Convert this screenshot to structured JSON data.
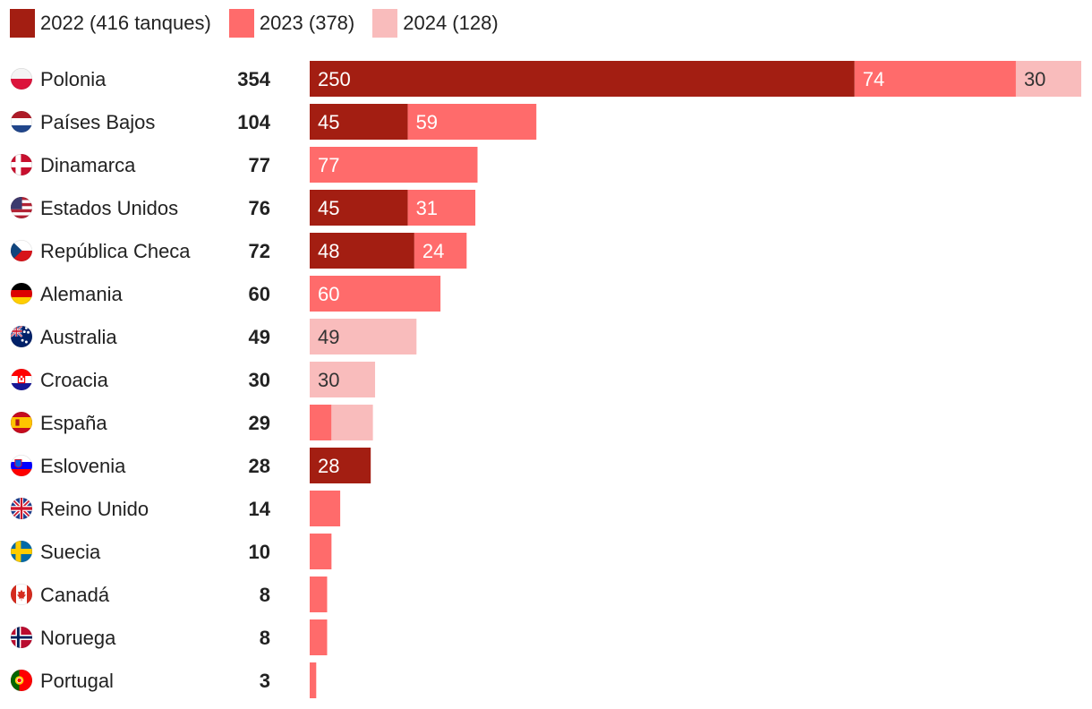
{
  "chart_data": {
    "type": "bar",
    "orientation": "horizontal",
    "stacked": true,
    "legend_position": "top-left",
    "colors": {
      "2022": "#a31e12",
      "2023": "#ff6b6b",
      "2024": "#f9bcbc"
    },
    "series": [
      {
        "key": "2022",
        "name": "2022 (416 tanques)",
        "values": [
          250,
          45,
          0,
          45,
          48,
          0,
          0,
          0,
          0,
          28,
          0,
          0,
          0,
          0,
          0
        ]
      },
      {
        "key": "2023",
        "name": "2023 (378)",
        "values": [
          74,
          59,
          77,
          31,
          24,
          60,
          0,
          0,
          10,
          0,
          14,
          10,
          8,
          8,
          3
        ]
      },
      {
        "key": "2024",
        "name": "2024 (128)",
        "values": [
          30,
          0,
          0,
          0,
          0,
          0,
          49,
          30,
          19,
          0,
          0,
          0,
          0,
          0,
          0
        ]
      }
    ],
    "categories": [
      "Polonia",
      "Países Bajos",
      "Dinamarca",
      "Estados Unidos",
      "República Checa",
      "Alemania",
      "Australia",
      "Croacia",
      "España",
      "Eslovenia",
      "Reino Unido",
      "Suecia",
      "Canadá",
      "Noruega",
      "Portugal"
    ],
    "flags": [
      "poland-flag-icon",
      "netherlands-flag-icon",
      "denmark-flag-icon",
      "usa-flag-icon",
      "czech-flag-icon",
      "germany-flag-icon",
      "australia-flag-icon",
      "croatia-flag-icon",
      "spain-flag-icon",
      "slovenia-flag-icon",
      "uk-flag-icon",
      "sweden-flag-icon",
      "canada-flag-icon",
      "norway-flag-icon",
      "portugal-flag-icon"
    ],
    "totals": [
      354,
      104,
      77,
      76,
      72,
      60,
      49,
      30,
      29,
      28,
      14,
      10,
      8,
      8,
      3
    ],
    "show_value_labels": [
      [
        true,
        true,
        true
      ],
      [
        true,
        true,
        false
      ],
      [
        false,
        true,
        false
      ],
      [
        true,
        true,
        false
      ],
      [
        true,
        true,
        false
      ],
      [
        false,
        true,
        false
      ],
      [
        false,
        false,
        true
      ],
      [
        false,
        false,
        true
      ],
      [
        false,
        false,
        false
      ],
      [
        true,
        false,
        false
      ],
      [
        false,
        false,
        false
      ],
      [
        false,
        false,
        false
      ],
      [
        false,
        false,
        false
      ],
      [
        false,
        false,
        false
      ],
      [
        false,
        false,
        false
      ]
    ],
    "xlim": [
      0,
      354
    ],
    "grid": false
  }
}
